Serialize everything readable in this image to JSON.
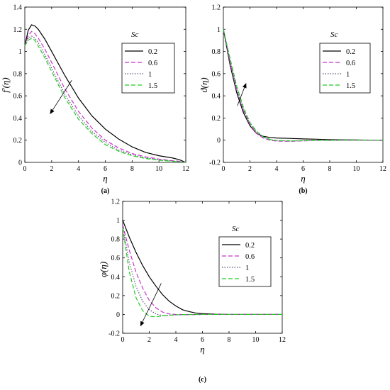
{
  "chart_data": [
    {
      "type": "line",
      "caption": "(a)",
      "xlabel": "η",
      "ylabel": "f′(η)",
      "xlim": [
        0,
        12
      ],
      "ylim": [
        0,
        1.4
      ],
      "xticks": [
        0,
        2,
        4,
        6,
        8,
        10,
        12
      ],
      "yticks": [
        0,
        0.2,
        0.4,
        0.6,
        0.8,
        1,
        1.2,
        1.4
      ],
      "grid": false,
      "legend": {
        "title": "Sc",
        "placement": "top-right"
      },
      "annotation": "arrow indicating increasing Sc",
      "series": [
        {
          "name": "0.2",
          "color": "#000000",
          "dash": "solid",
          "x": [
            0,
            0.25,
            0.5,
            0.75,
            1,
            1.5,
            2,
            3,
            4,
            5,
            6,
            7,
            8,
            9,
            10,
            11,
            11.5,
            12
          ],
          "y": [
            1.05,
            1.19,
            1.24,
            1.23,
            1.2,
            1.11,
            1.0,
            0.78,
            0.58,
            0.42,
            0.3,
            0.21,
            0.14,
            0.09,
            0.06,
            0.04,
            0.025,
            0.0
          ]
        },
        {
          "name": "0.6",
          "color": "#cc33cc",
          "dash": "dashed",
          "x": [
            0,
            0.25,
            0.5,
            0.75,
            1,
            1.5,
            2,
            3,
            4,
            5,
            6,
            7,
            8,
            9,
            10,
            11,
            11.5,
            12
          ],
          "y": [
            1.05,
            1.14,
            1.18,
            1.16,
            1.12,
            1.02,
            0.9,
            0.66,
            0.46,
            0.31,
            0.2,
            0.13,
            0.08,
            0.05,
            0.03,
            0.015,
            0.01,
            0.0
          ]
        },
        {
          "name": "1",
          "color": "#555577",
          "dash": "dotted",
          "x": [
            0,
            0.25,
            0.5,
            0.75,
            1,
            1.5,
            2,
            3,
            4,
            5,
            6,
            7,
            8,
            9,
            10,
            11,
            11.5,
            12
          ],
          "y": [
            1.05,
            1.12,
            1.14,
            1.12,
            1.08,
            0.97,
            0.85,
            0.61,
            0.42,
            0.28,
            0.18,
            0.11,
            0.07,
            0.04,
            0.025,
            0.012,
            0.008,
            0.0
          ]
        },
        {
          "name": "1.5",
          "color": "#22cc22",
          "dash": "dashed",
          "x": [
            0,
            0.25,
            0.5,
            0.75,
            1,
            1.5,
            2,
            3,
            4,
            5,
            6,
            7,
            8,
            9,
            10,
            11,
            11.5,
            12
          ],
          "y": [
            1.05,
            1.1,
            1.12,
            1.1,
            1.05,
            0.94,
            0.82,
            0.58,
            0.39,
            0.26,
            0.16,
            0.1,
            0.06,
            0.035,
            0.02,
            0.01,
            0.005,
            0.0
          ]
        }
      ],
      "arrows": [
        {
          "from": [
            3.5,
            0.74
          ],
          "to": [
            1.9,
            0.44
          ]
        }
      ]
    },
    {
      "type": "line",
      "caption": "(b)",
      "xlabel": "η",
      "ylabel": "ϑ(η)",
      "xlim": [
        0,
        12
      ],
      "ylim": [
        -0.2,
        1.2
      ],
      "xticks": [
        0,
        2,
        4,
        6,
        8,
        10,
        12
      ],
      "yticks": [
        -0.2,
        0,
        0.2,
        0.4,
        0.6,
        0.8,
        1,
        1.2
      ],
      "grid": false,
      "legend": {
        "title": "Sc",
        "placement": "top-right"
      },
      "annotation": "arrow indicating increasing Sc",
      "series": [
        {
          "name": "0.2",
          "color": "#000000",
          "dash": "solid",
          "x": [
            0,
            0.5,
            1,
            1.5,
            2,
            2.5,
            3,
            3.5,
            4,
            5,
            6,
            7,
            8,
            9,
            10,
            11,
            12
          ],
          "y": [
            1.0,
            0.68,
            0.43,
            0.25,
            0.13,
            0.06,
            0.035,
            0.025,
            0.02,
            0.016,
            0.012,
            0.009,
            0.005,
            0.003,
            0.002,
            0.001,
            0.0
          ]
        },
        {
          "name": "0.6",
          "color": "#cc33cc",
          "dash": "dashed",
          "x": [
            0,
            0.5,
            1,
            1.5,
            2,
            2.5,
            3,
            3.5,
            4,
            5,
            6,
            7,
            8,
            9,
            10,
            11,
            12
          ],
          "y": [
            1.0,
            0.7,
            0.45,
            0.27,
            0.14,
            0.06,
            0.02,
            0.0,
            -0.008,
            -0.01,
            -0.006,
            -0.003,
            -0.001,
            0.0,
            0.0,
            0.0,
            0.0
          ]
        },
        {
          "name": "1",
          "color": "#555577",
          "dash": "dotted",
          "x": [
            0,
            0.5,
            1,
            1.5,
            2,
            2.5,
            3,
            3.5,
            4,
            5,
            6,
            7,
            8,
            9,
            10,
            11,
            12
          ],
          "y": [
            1.0,
            0.72,
            0.47,
            0.28,
            0.15,
            0.07,
            0.025,
            0.005,
            -0.005,
            -0.008,
            -0.005,
            -0.002,
            -0.001,
            0.0,
            0.0,
            0.0,
            0.0
          ]
        },
        {
          "name": "1.5",
          "color": "#22cc22",
          "dash": "dashed",
          "x": [
            0,
            0.5,
            1,
            1.5,
            2,
            2.5,
            3,
            3.5,
            4,
            5,
            6,
            7,
            8,
            9,
            10,
            11,
            12
          ],
          "y": [
            1.0,
            0.74,
            0.49,
            0.3,
            0.16,
            0.08,
            0.03,
            0.008,
            -0.003,
            -0.006,
            -0.004,
            -0.002,
            -0.001,
            0.0,
            0.0,
            0.0,
            0.0
          ]
        }
      ],
      "arrows": [
        {
          "from": [
            1.05,
            0.31
          ],
          "to": [
            1.7,
            0.51
          ]
        }
      ]
    },
    {
      "type": "line",
      "caption": "(c)",
      "xlabel": "η",
      "ylabel": "φ(η)",
      "xlim": [
        0,
        12
      ],
      "ylim": [
        -0.2,
        1.2
      ],
      "xticks": [
        0,
        2,
        4,
        6,
        8,
        10,
        12
      ],
      "yticks": [
        -0.2,
        0,
        0.2,
        0.4,
        0.6,
        0.8,
        1,
        1.2
      ],
      "grid": false,
      "legend": {
        "title": "Sc",
        "placement": "top-right"
      },
      "annotation": "arrow indicating increasing Sc",
      "series": [
        {
          "name": "0.2",
          "color": "#000000",
          "dash": "solid",
          "x": [
            0,
            0.5,
            1,
            1.5,
            2,
            2.5,
            3,
            3.5,
            4,
            4.5,
            5,
            5.5,
            6,
            7,
            8,
            9,
            10,
            11,
            12
          ],
          "y": [
            1.0,
            0.82,
            0.66,
            0.52,
            0.4,
            0.3,
            0.21,
            0.14,
            0.09,
            0.05,
            0.03,
            0.015,
            0.008,
            0.002,
            0.0,
            0.0,
            0.0,
            0.0,
            0.0
          ]
        },
        {
          "name": "0.6",
          "color": "#cc33cc",
          "dash": "dashed",
          "x": [
            0,
            0.5,
            1,
            1.5,
            2,
            2.5,
            3,
            3.5,
            4,
            5,
            6,
            7,
            8,
            9,
            10,
            11,
            12
          ],
          "y": [
            0.95,
            0.68,
            0.45,
            0.28,
            0.15,
            0.07,
            0.025,
            0.005,
            0.0,
            -0.002,
            0.0,
            0.0,
            0.0,
            0.0,
            0.0,
            0.0,
            0.0
          ]
        },
        {
          "name": "1",
          "color": "#555577",
          "dash": "dotted",
          "x": [
            0,
            0.5,
            1,
            1.5,
            2,
            2.5,
            3,
            3.5,
            4,
            5,
            6,
            7,
            8,
            9,
            10,
            11,
            12
          ],
          "y": [
            0.95,
            0.55,
            0.3,
            0.14,
            0.05,
            0.005,
            -0.012,
            -0.01,
            -0.006,
            -0.002,
            0.0,
            0.0,
            0.0,
            0.0,
            0.0,
            0.0,
            0.0
          ]
        },
        {
          "name": "1.5",
          "color": "#22cc22",
          "dash": "dashed",
          "x": [
            0,
            0.5,
            1,
            1.5,
            2,
            2.5,
            3,
            3.5,
            4,
            5,
            6,
            7,
            8,
            9,
            10,
            11,
            12
          ],
          "y": [
            0.92,
            0.45,
            0.18,
            0.04,
            -0.02,
            -0.025,
            -0.015,
            -0.008,
            -0.004,
            -0.001,
            0.0,
            0.0,
            0.0,
            0.0,
            0.0,
            0.0,
            0.0
          ]
        }
      ],
      "arrows": [
        {
          "from": [
            2.9,
            0.33
          ],
          "to": [
            1.35,
            -0.12
          ]
        }
      ]
    }
  ]
}
